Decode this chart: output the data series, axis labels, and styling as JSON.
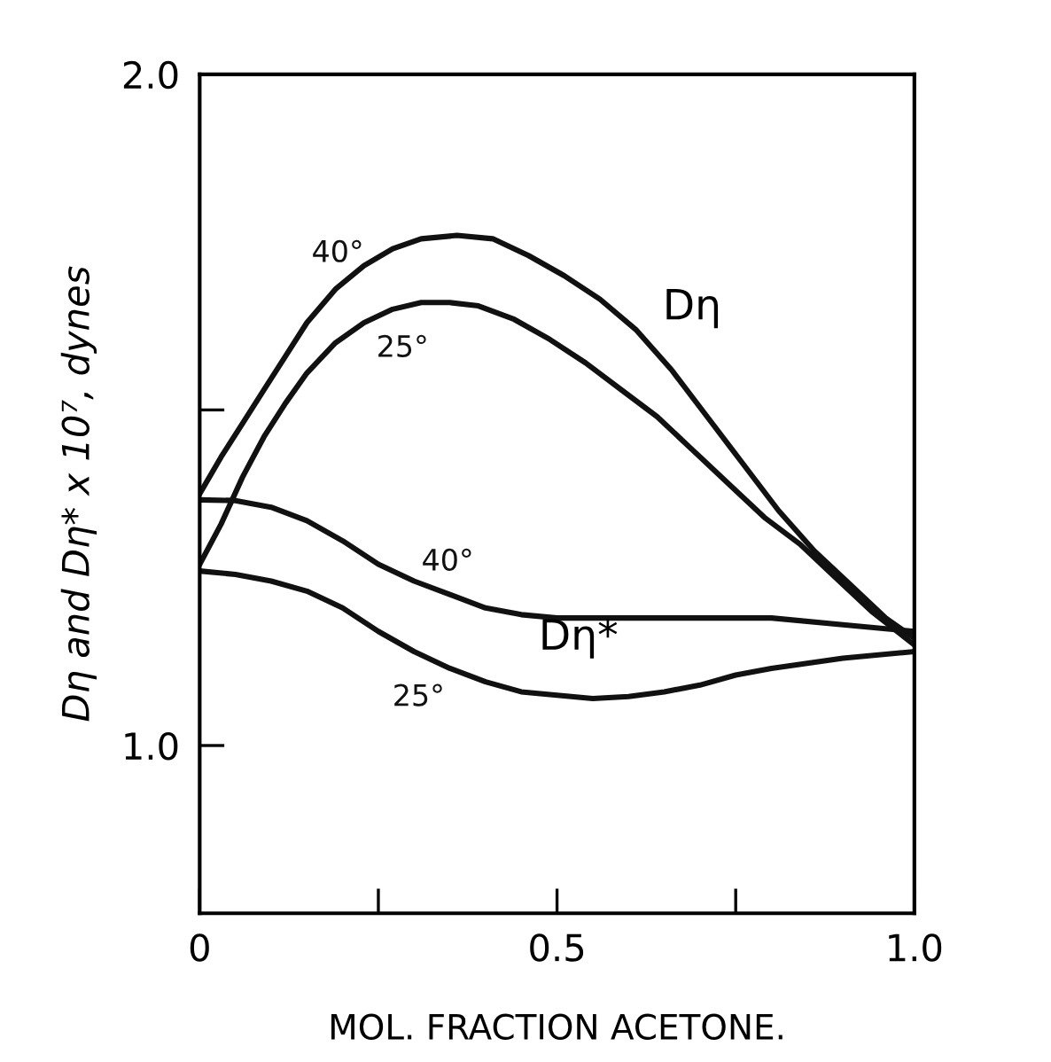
{
  "chart_data": {
    "type": "line",
    "xlabel": "MOL. FRACTION ACETONE.",
    "ylabel": "Dη and Dη* x 10⁷, dynes",
    "xlim": [
      0,
      1
    ],
    "ylim": [
      0.75,
      2.0
    ],
    "xticks": [
      0,
      {
        "value": 0.25,
        "label": null
      },
      0.5,
      {
        "value": 0.75,
        "label": null
      },
      {
        "value": 1,
        "label": "1.0"
      }
    ],
    "yticks": [
      {
        "value": 1,
        "label": "1.0"
      },
      {
        "value": 1.5,
        "label": null
      },
      {
        "value": 2,
        "label": "2.0"
      }
    ],
    "grid": false,
    "legend": false,
    "marker": "none",
    "line_style": "solid",
    "series": [
      {
        "name": "40°",
        "color": "#111111",
        "x": [
          0,
          0.03,
          0.06,
          0.09,
          0.12,
          0.15,
          0.19,
          0.23,
          0.27,
          0.31,
          0.36,
          0.41,
          0.46,
          0.51,
          0.56,
          0.61,
          0.66,
          0.71,
          0.76,
          0.81,
          0.86,
          0.91,
          0.96,
          1.0
        ],
        "values": [
          1.375,
          1.43,
          1.48,
          1.53,
          1.58,
          1.63,
          1.68,
          1.715,
          1.74,
          1.755,
          1.76,
          1.755,
          1.73,
          1.7,
          1.665,
          1.62,
          1.56,
          1.49,
          1.42,
          1.35,
          1.29,
          1.24,
          1.19,
          1.16
        ]
      },
      {
        "name": "25°",
        "color": "#111111",
        "x": [
          0,
          0.03,
          0.06,
          0.09,
          0.12,
          0.15,
          0.19,
          0.23,
          0.27,
          0.31,
          0.35,
          0.39,
          0.44,
          0.49,
          0.54,
          0.59,
          0.64,
          0.69,
          0.74,
          0.79,
          0.84,
          0.89,
          0.94,
          1.0
        ],
        "values": [
          1.27,
          1.33,
          1.4,
          1.46,
          1.51,
          1.555,
          1.6,
          1.63,
          1.65,
          1.66,
          1.66,
          1.655,
          1.635,
          1.605,
          1.57,
          1.53,
          1.49,
          1.44,
          1.39,
          1.34,
          1.3,
          1.25,
          1.2,
          1.15
        ]
      },
      {
        "name": "40°",
        "color": "#111111",
        "x": [
          0,
          0.05,
          0.1,
          0.15,
          0.2,
          0.25,
          0.3,
          0.35,
          0.4,
          0.45,
          0.5,
          0.55,
          0.6,
          0.7,
          0.8,
          0.9,
          1.0
        ],
        "values": [
          1.366,
          1.365,
          1.355,
          1.335,
          1.305,
          1.27,
          1.245,
          1.225,
          1.205,
          1.195,
          1.19,
          1.19,
          1.19,
          1.19,
          1.19,
          1.18,
          1.17
        ]
      },
      {
        "name": "25°",
        "color": "#111111",
        "x": [
          0,
          0.05,
          0.1,
          0.15,
          0.2,
          0.25,
          0.3,
          0.35,
          0.4,
          0.45,
          0.5,
          0.55,
          0.6,
          0.65,
          0.7,
          0.75,
          0.8,
          0.9,
          1.0
        ],
        "values": [
          1.26,
          1.255,
          1.245,
          1.23,
          1.205,
          1.17,
          1.14,
          1.115,
          1.095,
          1.08,
          1.075,
          1.07,
          1.073,
          1.08,
          1.09,
          1.105,
          1.115,
          1.13,
          1.14
        ]
      }
    ],
    "annotations": [
      "Dη",
      "Dη*"
    ]
  }
}
